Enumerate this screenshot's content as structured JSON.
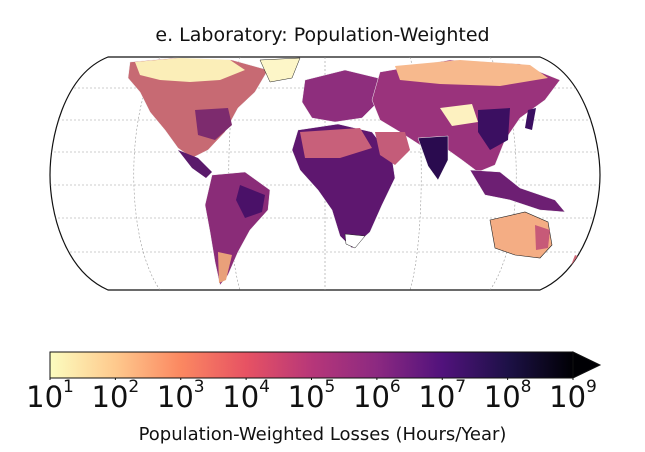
{
  "title": "e. Laboratory: Population-Weighted",
  "colorbar": {
    "label": "Population-Weighted Losses (Hours/Year)",
    "ticks": [
      {
        "base": "10",
        "exp": "1"
      },
      {
        "base": "10",
        "exp": "2"
      },
      {
        "base": "10",
        "exp": "3"
      },
      {
        "base": "10",
        "exp": "4"
      },
      {
        "base": "10",
        "exp": "5"
      },
      {
        "base": "10",
        "exp": "6"
      },
      {
        "base": "10",
        "exp": "7"
      },
      {
        "base": "10",
        "exp": "8"
      },
      {
        "base": "10",
        "exp": "9"
      }
    ],
    "scale": "log",
    "range": [
      10,
      1000000000
    ],
    "extend": "max",
    "colormap": [
      "#fcfdbf",
      "#fec98d",
      "#fb8861",
      "#e75263",
      "#b73779",
      "#8c2981",
      "#51127c",
      "#1d1147",
      "#000004"
    ]
  },
  "map": {
    "projection": "Robinson",
    "ocean_color": "#ffffff",
    "gridlines": "dotted"
  }
}
